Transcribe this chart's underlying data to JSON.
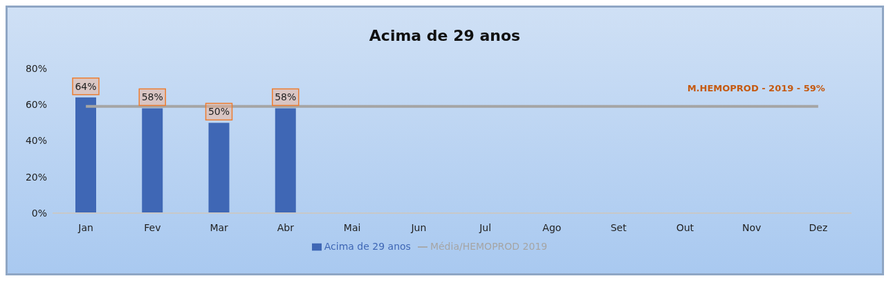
{
  "chart_data": {
    "type": "bar",
    "title": "Acima de 29 anos",
    "categories": [
      "Jan",
      "Fev",
      "Mar",
      "Abr",
      "Mai",
      "Jun",
      "Jul",
      "Ago",
      "Set",
      "Out",
      "Nov",
      "Dez"
    ],
    "series": [
      {
        "name": "Acima de 29 anos",
        "color": "#3f67b5",
        "values": [
          64,
          58,
          50,
          58,
          null,
          null,
          null,
          null,
          null,
          null,
          null,
          null
        ],
        "value_labels": [
          "64%",
          "58%",
          "50%",
          "58%",
          null,
          null,
          null,
          null,
          null,
          null,
          null,
          null
        ]
      },
      {
        "name": "Média/HEMOPROD 2019",
        "type": "line",
        "color": "#a5a5a5",
        "values": [
          59,
          59,
          59,
          59,
          59,
          59,
          59,
          59,
          59,
          59,
          59,
          59
        ]
      }
    ],
    "ylim": [
      0,
      80
    ],
    "yticks": [
      {
        "value": 0,
        "label": "0%"
      },
      {
        "value": 20,
        "label": "20%"
      },
      {
        "value": 40,
        "label": "40%"
      },
      {
        "value": 60,
        "label": "60%"
      },
      {
        "value": 80,
        "label": "80%"
      }
    ],
    "annotations": [
      {
        "text": "M.HEMOPROD - 2019 - 59%",
        "x": "Dez",
        "y": 59
      }
    ],
    "grid": false,
    "legend": "bottom",
    "marker": "none"
  }
}
